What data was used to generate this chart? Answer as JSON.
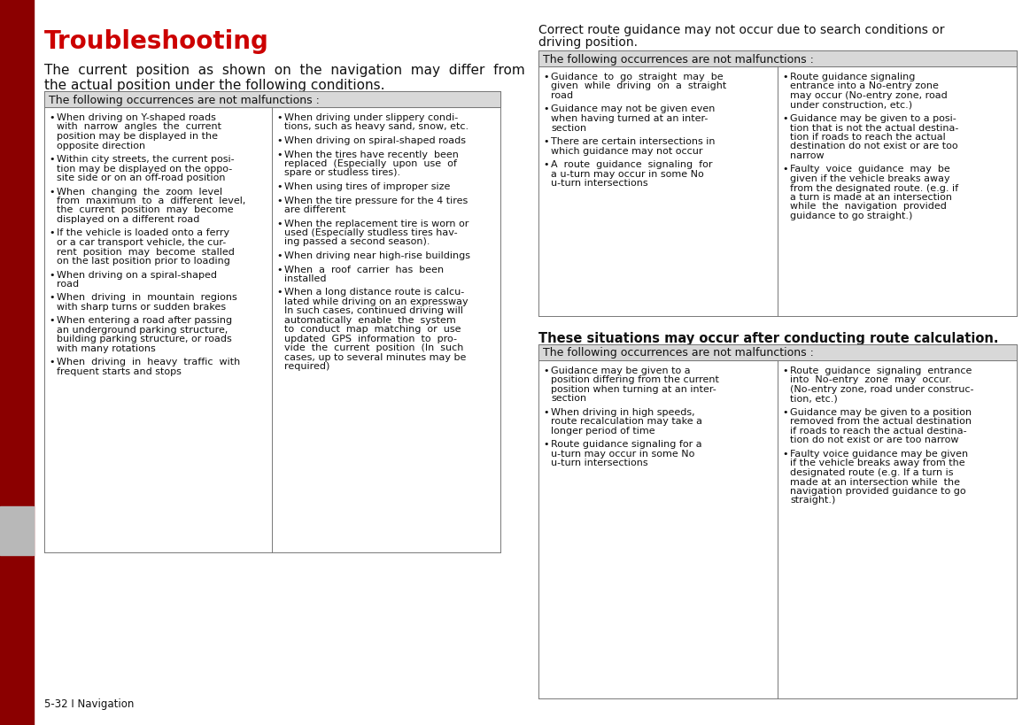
{
  "page_bg": "#ffffff",
  "sidebar_color": "#8B0000",
  "sidebar_gray_color": "#b8b8b8",
  "title": "Troubleshooting",
  "title_color": "#cc0000",
  "title_fontsize": 20,
  "intro_fontsize": 11,
  "table_header_bg": "#d8d8d8",
  "table_header_text": "The following occurrences are not malfunctions :",
  "table_header_fontsize": 9,
  "table_border_color": "#777777",
  "footer_text": "5-32 I Navigation",
  "footer_fontsize": 8.5,
  "item_fontsize": 8,
  "left_col1_items": [
    "When driving on Y-shaped roads\nwith  narrow  angles  the  current\nposition may be displayed in the\nopposite direction",
    "Within city streets, the current posi-\ntion may be displayed on the oppo-\nsite side or on an off-road position",
    "When  changing  the  zoom  level\nfrom  maximum  to  a  different  level,\nthe  current  position  may  become\ndisplayed on a different road",
    "If the vehicle is loaded onto a ferry\nor a car transport vehicle, the cur-\nrent  position  may  become  stalled\non the last position prior to loading",
    "When driving on a spiral-shaped\nroad",
    "When  driving  in  mountain  regions\nwith sharp turns or sudden brakes",
    "When entering a road after passing\nan underground parking structure,\nbuilding parking structure, or roads\nwith many rotations",
    "When  driving  in  heavy  traffic  with\nfrequent starts and stops"
  ],
  "right_col1_items": [
    "When driving under slippery condi-\ntions, such as heavy sand, snow, etc.",
    "When driving on spiral-shaped roads",
    "When the tires have recently  been\nreplaced  (Especially  upon  use  of\nspare or studless tires).",
    "When using tires of improper size",
    "When the tire pressure for the 4 tires\nare different",
    "When the replacement tire is worn or\nused (Especially studless tires hav-\ning passed a second season).",
    "When driving near high-rise buildings",
    "When  a  roof  carrier  has  been\ninstalled",
    "When a long distance route is calcu-\nlated while driving on an expressway\nIn such cases, continued driving will\nautomatically  enable  the  system\nto  conduct  map  matching  or  use\nupdated  GPS  information  to  pro-\nvide  the  current  position  (In  such\ncases, up to several minutes may be\nrequired)"
  ],
  "correct_route_line1": "Correct route guidance may not occur due to search conditions or",
  "correct_route_line2": "driving position.",
  "correct_route_fontsize": 10,
  "table2_header": "The following occurrences are not malfunctions :",
  "left_col2_items": [
    "Guidance  to  go  straight  may  be\ngiven  while  driving  on  a  straight\nroad",
    "Guidance may not be given even\nwhen having turned at an inter-\nsection",
    "There are certain intersections in\nwhich guidance may not occur",
    "A  route  guidance  signaling  for\na u-turn may occur in some No\nu-turn intersections"
  ],
  "right_col2_items": [
    "Route guidance signaling\nentrance into a No-entry zone\nmay occur (No-entry zone, road\nunder construction, etc.)",
    "Guidance may be given to a posi-\ntion that is not the actual destina-\ntion if roads to reach the actual\ndestination do not exist or are too\nnarrow",
    "Faulty  voice  guidance  may  be\ngiven if the vehicle breaks away\nfrom the designated route. (e.g. if\na turn is made at an intersection\nwhile  the  navigation  provided\nguidance to go straight.)"
  ],
  "situations_text": "These situations may occur after conducting route calculation.",
  "situations_fontsize": 10.5,
  "table3_header": "The following occurrences are not malfunctions :",
  "left_col3_items": [
    "Guidance may be given to a\nposition differing from the current\nposition when turning at an inter-\nsection",
    "When driving in high speeds,\nroute recalculation may take a\nlonger period of time",
    "Route guidance signaling for a\nu-turn may occur in some No\nu-turn intersections"
  ],
  "right_col3_items": [
    "Route  guidance  signaling  entrance\ninto  No-entry  zone  may  occur.\n(No-entry zone, road under construc-\ntion, etc.)",
    "Guidance may be given to a position\nremoved from the actual destination\nif roads to reach the actual destina-\ntion do not exist or are too narrow",
    "Faulty voice guidance may be given\nif the vehicle breaks away from the\ndesignated route (e.g. If a turn is\nmade at an intersection while  the\nnavigation provided guidance to go\nstraight.)"
  ]
}
